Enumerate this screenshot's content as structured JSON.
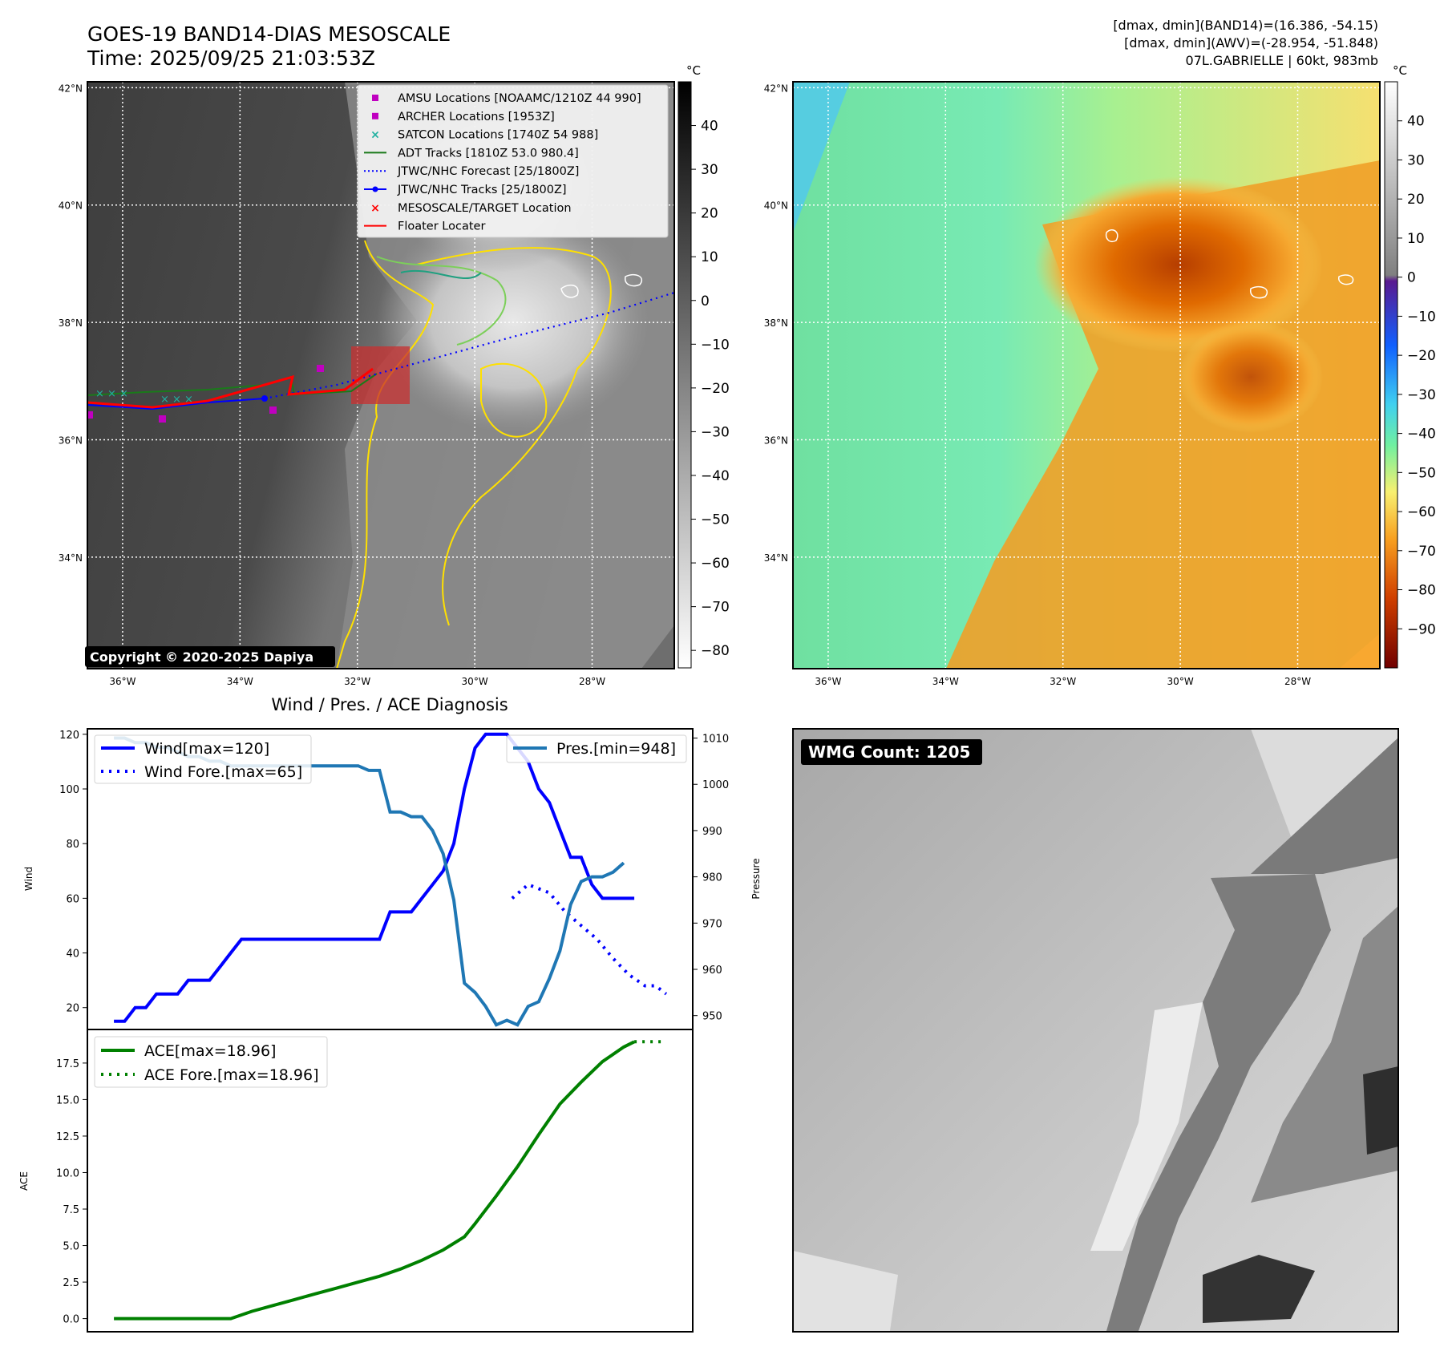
{
  "header": {
    "title_line1": "GOES-19 BAND14-DIAS MESOSCALE",
    "title_line2": "Time: 2025/09/25 21:03:53Z",
    "info_line1": "[dmax, dmin](BAND14)=(16.386, -54.15)",
    "info_line2": "[dmax, dmin](AWV)=(-28.954, -51.848)",
    "info_line3": "07L.GABRIELLE | 60kt, 983mb"
  },
  "map_axes": {
    "lat_labels": [
      "42°N",
      "40°N",
      "38°N",
      "36°N",
      "34°N"
    ],
    "lat_values": [
      42,
      40,
      38,
      36,
      34
    ],
    "lon_labels": [
      "36°W",
      "34°W",
      "32°W",
      "30°W",
      "28°W"
    ],
    "lon_values": [
      36,
      34,
      32,
      30,
      28
    ],
    "lat_range": [
      32.1,
      42.1
    ],
    "lon_range": [
      36.6,
      26.6
    ]
  },
  "colorbar_left": {
    "unit": "°C",
    "ticks": [
      "40",
      "30",
      "20",
      "10",
      "0",
      "−10",
      "−20",
      "−30",
      "−40",
      "−50",
      "−60",
      "−70",
      "−80"
    ],
    "tick_values": [
      40,
      30,
      20,
      10,
      0,
      -10,
      -20,
      -30,
      -40,
      -50,
      -60,
      -70,
      -80
    ],
    "range": [
      -84,
      50
    ]
  },
  "colorbar_right": {
    "unit": "°C",
    "ticks": [
      "40",
      "30",
      "20",
      "10",
      "0",
      "−10",
      "−20",
      "−30",
      "−40",
      "−50",
      "−60",
      "−70",
      "−80",
      "−90"
    ],
    "tick_values": [
      40,
      30,
      20,
      10,
      0,
      -10,
      -20,
      -30,
      -40,
      -50,
      -60,
      -70,
      -80,
      -90
    ],
    "range": [
      -100,
      50
    ]
  },
  "map_legend": [
    {
      "label": "AMSU Locations [NOAAMC/1210Z 44 990]",
      "marker": "square",
      "color": "#c000c0"
    },
    {
      "label": "ARCHER Locations [1953Z]",
      "marker": "square",
      "color": "#c000c0"
    },
    {
      "label": "SATCON Locations [1740Z 54 988]",
      "marker": "x",
      "color": "#20b0a0"
    },
    {
      "label": "ADT Tracks [1810Z 53.0 980.4]",
      "marker": "line",
      "color": "#1a7a1a"
    },
    {
      "label": "JTWC/NHC Forecast [25/1800Z]",
      "marker": "dotted",
      "color": "#0000ff"
    },
    {
      "label": "JTWC/NHC Tracks [25/1800Z]",
      "marker": "line-dot",
      "color": "#0000ff"
    },
    {
      "label": "MESOSCALE/TARGET Location",
      "marker": "x",
      "color": "#ff0000"
    },
    {
      "label": "Floater Locater",
      "marker": "line",
      "color": "#ff0000"
    }
  ],
  "copyright": "Copyright © 2020-2025 Dapiya",
  "colors": {
    "wind": "#0000ff",
    "pres": "#1f77b4",
    "ace": "#008000",
    "adt": "#1a7a1a",
    "satcon": "#20b0a0",
    "amsu": "#c000c0",
    "floater": "#ff0000",
    "contour_yellow": "#ffe000",
    "contour_green": "#7ccf5a",
    "contour_teal": "#20a080"
  },
  "chart_data": [
    {
      "type": "line",
      "title": "Wind / Pres. / ACE Diagnosis",
      "ylabel": "Wind",
      "y2label": "Pressure",
      "ylim": [
        12,
        122
      ],
      "y2lim": [
        947,
        1012
      ],
      "yticks": [
        20,
        40,
        60,
        80,
        100,
        120
      ],
      "y2ticks": [
        950,
        960,
        970,
        980,
        990,
        1000,
        1010
      ],
      "x": [
        0,
        1,
        2,
        3,
        4,
        5,
        6,
        7,
        8,
        9,
        10,
        11,
        12,
        13,
        14,
        15,
        16,
        17,
        18,
        19,
        20,
        21,
        22,
        23,
        24,
        25,
        26,
        27,
        28,
        29,
        30,
        31,
        32,
        33,
        34,
        35,
        36,
        37,
        38,
        39,
        40,
        41,
        42,
        43,
        44,
        45,
        46,
        47,
        48,
        49,
        50,
        51,
        52
      ],
      "series": [
        {
          "name": "Wind[max=120]",
          "style": "solid",
          "axis": "left",
          "x": [
            0,
            1,
            2,
            3,
            4,
            5,
            6,
            7,
            8,
            9,
            10,
            11,
            12,
            13,
            14,
            15,
            16,
            17,
            18,
            19,
            20,
            21,
            22,
            23,
            24,
            25,
            26,
            27,
            28,
            29,
            30,
            31,
            32,
            33,
            34,
            35,
            36,
            37,
            38,
            39,
            40,
            41,
            42,
            43,
            44,
            45,
            46,
            47,
            48,
            49
          ],
          "values": [
            15,
            15,
            20,
            20,
            25,
            25,
            25,
            30,
            30,
            30,
            35,
            40,
            45,
            45,
            45,
            45,
            45,
            45,
            45,
            45,
            45,
            45,
            45,
            45,
            45,
            45,
            55,
            55,
            55,
            60,
            65,
            70,
            80,
            100,
            115,
            120,
            120,
            120,
            115,
            110,
            100,
            95,
            85,
            75,
            75,
            65,
            60,
            60,
            60,
            60
          ]
        },
        {
          "name": "Wind Fore.[max=65]",
          "style": "dotted",
          "axis": "left",
          "x": [
            37.5,
            39,
            41,
            42.5,
            44,
            45.5,
            47,
            48.5,
            50,
            51,
            52
          ],
          "values": [
            60,
            65,
            62,
            55,
            50,
            45,
            38,
            32,
            28,
            28,
            25
          ]
        },
        {
          "name": "Pres.[min=948]",
          "style": "solid",
          "axis": "right",
          "x": [
            0,
            1,
            2,
            3,
            4,
            5,
            6,
            7,
            8,
            9,
            10,
            11,
            12,
            13,
            14,
            15,
            16,
            17,
            18,
            19,
            20,
            21,
            22,
            23,
            24,
            25,
            26,
            27,
            28,
            29,
            30,
            31,
            32,
            33,
            34,
            35,
            36,
            37,
            38,
            39,
            40,
            41,
            42,
            43,
            44,
            45,
            46,
            47,
            48
          ],
          "values": [
            1010,
            1010,
            1009,
            1009,
            1008,
            1008,
            1007,
            1006,
            1006,
            1005,
            1005,
            1004,
            1004,
            1004,
            1004,
            1004,
            1004,
            1004,
            1004,
            1004,
            1004,
            1004,
            1004,
            1004,
            1003,
            1003,
            994,
            994,
            993,
            993,
            990,
            985,
            975,
            957,
            955,
            952,
            948,
            949,
            948,
            952,
            953,
            958,
            964,
            974,
            979,
            980,
            980,
            981,
            983
          ]
        }
      ],
      "legend": [
        "Wind[max=120]",
        "Wind Fore.[max=65]",
        "Pres.[min=948]"
      ]
    },
    {
      "type": "line",
      "ylabel": "ACE",
      "ylim": [
        -0.9,
        19.8
      ],
      "yticks": [
        "0.0",
        "2.5",
        "5.0",
        "7.5",
        "10.0",
        "12.5",
        "15.0",
        "17.5"
      ],
      "ytick_values": [
        0,
        2.5,
        5,
        7.5,
        10,
        12.5,
        15,
        17.5
      ],
      "series": [
        {
          "name": "ACE[max=18.96]",
          "style": "solid",
          "x": [
            0,
            3,
            6,
            9,
            11,
            13,
            15,
            17,
            19,
            21,
            23,
            25,
            27,
            29,
            31,
            33,
            34,
            36,
            38,
            40,
            42,
            44,
            46,
            48,
            49
          ],
          "values": [
            0,
            0,
            0,
            0,
            0,
            0.5,
            0.9,
            1.3,
            1.7,
            2.1,
            2.5,
            2.9,
            3.4,
            4.0,
            4.7,
            5.6,
            6.5,
            8.4,
            10.4,
            12.6,
            14.7,
            16.2,
            17.6,
            18.6,
            18.96
          ]
        },
        {
          "name": "ACE Fore.[max=18.96]",
          "style": "dotted",
          "x": [
            49,
            52
          ],
          "values": [
            18.96,
            18.96
          ]
        }
      ],
      "legend": [
        "ACE[max=18.96]",
        "ACE Fore.[max=18.96]"
      ]
    }
  ],
  "wmg": {
    "label": "WMG Count: 1205"
  }
}
